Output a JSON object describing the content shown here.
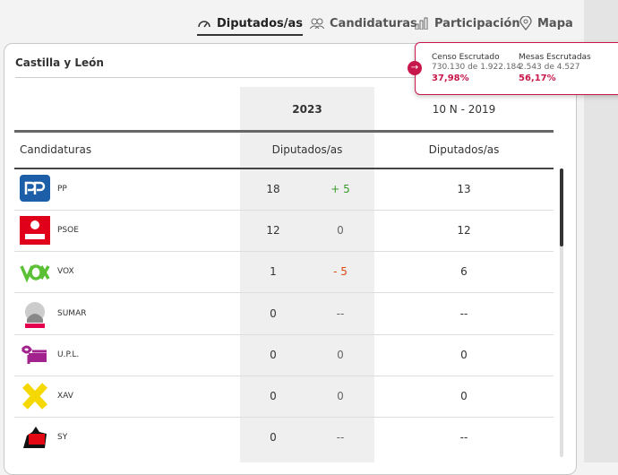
{
  "tabs": [
    "Diputados/as",
    "Candidaturas",
    "Participación",
    "Mapa"
  ],
  "card": {
    "title": "Castilla y León"
  },
  "popup": {
    "censo": {
      "label": "Censo Escrutado",
      "detail": "730.130 de 1.922.184",
      "percent": "37,98%"
    },
    "mesas": {
      "label": "Mesas Escrutadas",
      "detail": "2.543 de 4.527",
      "percent": "56,17%"
    }
  },
  "table": {
    "year_current": "2023",
    "year_previous": "10 N - 2019",
    "columns": [
      "Candidaturas",
      "Diputados/as",
      "Diputados/as"
    ],
    "rows": [
      [
        "PP",
        "18",
        "+ 5",
        "13"
      ],
      [
        "PSOE",
        "12",
        "0",
        "12"
      ],
      [
        "VOX",
        "1",
        "- 5",
        "6"
      ],
      [
        "SUMAR",
        "0",
        "--",
        "--"
      ],
      [
        "U.P.L.",
        "0",
        "0",
        "0"
      ],
      [
        "XAV",
        "0",
        "0",
        "0"
      ],
      [
        "SY",
        "0",
        "--",
        "--"
      ]
    ]
  }
}
